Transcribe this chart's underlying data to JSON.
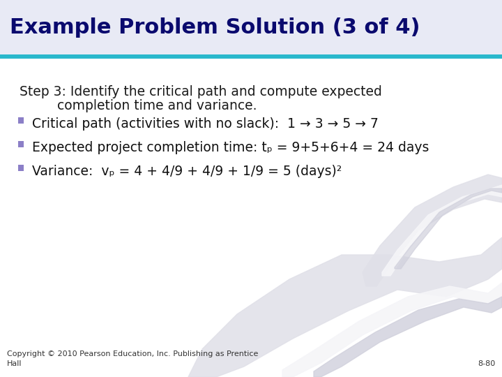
{
  "title": "Example Problem Solution (3 of 4)",
  "title_bg_color": "#e8eaf5",
  "title_color": "#0a0a6e",
  "title_fontsize": 22,
  "divider_color": "#29b8cc",
  "body_bg_color": "#ffffff",
  "step_text_line1": "Step 3: Identify the critical path and compute expected",
  "step_text_line2": "         completion time and variance.",
  "step_fontsize": 13.5,
  "bullet_color": "#8b7fc7",
  "bullet_items": [
    "Critical path (activities with no slack):  1 → 3 → 5 → 7",
    "Expected project completion time: tₚ = 9+5+6+4 = 24 days",
    "Variance:  vₚ = 4 + 4/9 + 4/9 + 1/9 = 5 (days)²"
  ],
  "bullet_fontsize": 13.5,
  "footer_text": "Copyright © 2010 Pearson Education, Inc. Publishing as Prentice",
  "footer_text2": "Hall",
  "footer_right": "8-80",
  "footer_fontsize": 8,
  "wave_light": "#e0e0e8",
  "wave_mid": "#d0d0dc",
  "wave_white": "#f5f5f8"
}
